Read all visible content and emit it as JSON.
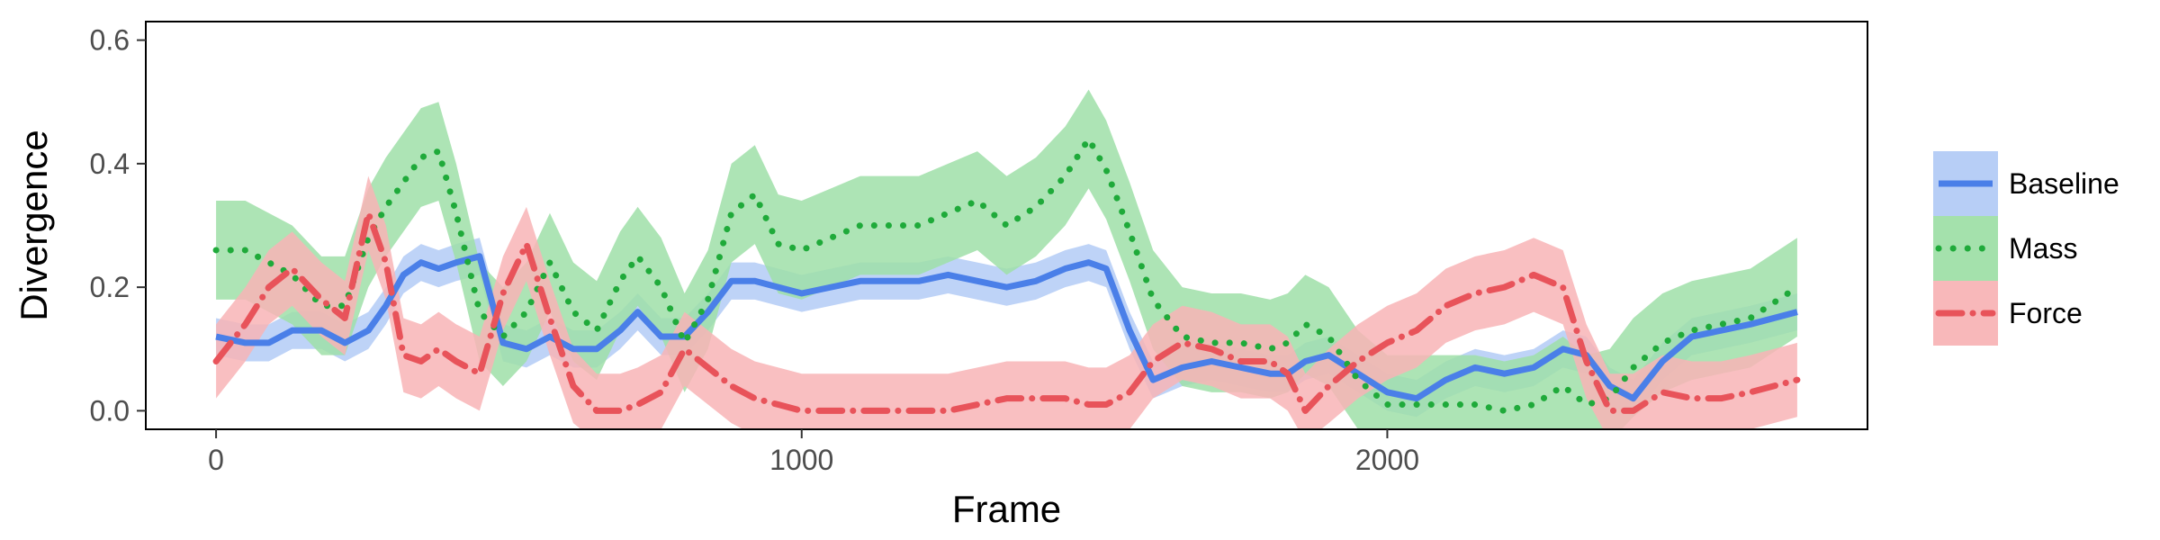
{
  "chart_data": {
    "type": "line",
    "xlabel": "Frame",
    "ylabel": "Divergence",
    "xlim": [
      -120,
      2820
    ],
    "ylim": [
      -0.03,
      0.63
    ],
    "xticks": [
      0,
      1000,
      2000
    ],
    "xtick_labels": [
      "0",
      "1000",
      "2000"
    ],
    "yticks": [
      0.0,
      0.2,
      0.4,
      0.6
    ],
    "ytick_labels": [
      "0.0",
      "0.2",
      "0.4",
      "0.6"
    ],
    "grid": false,
    "legend_position": "right",
    "x": [
      0,
      50,
      90,
      130,
      180,
      220,
      260,
      290,
      320,
      350,
      380,
      410,
      450,
      490,
      530,
      570,
      610,
      650,
      690,
      720,
      760,
      800,
      840,
      880,
      920,
      960,
      1000,
      1050,
      1100,
      1150,
      1200,
      1250,
      1300,
      1350,
      1400,
      1450,
      1490,
      1520,
      1560,
      1600,
      1650,
      1700,
      1750,
      1800,
      1830,
      1860,
      1900,
      1950,
      2000,
      2050,
      2100,
      2150,
      2200,
      2250,
      2300,
      2340,
      2380,
      2420,
      2470,
      2520,
      2570,
      2620,
      2700
    ],
    "series": [
      {
        "name": "Baseline",
        "color": "#4a7fe8",
        "band_color": "#b3cbf6",
        "style": "solid",
        "values": [
          0.12,
          0.11,
          0.11,
          0.13,
          0.13,
          0.11,
          0.13,
          0.17,
          0.22,
          0.24,
          0.23,
          0.24,
          0.25,
          0.11,
          0.1,
          0.12,
          0.1,
          0.1,
          0.13,
          0.16,
          0.12,
          0.12,
          0.16,
          0.21,
          0.21,
          0.2,
          0.19,
          0.2,
          0.21,
          0.21,
          0.21,
          0.22,
          0.21,
          0.2,
          0.21,
          0.23,
          0.24,
          0.23,
          0.13,
          0.05,
          0.07,
          0.08,
          0.07,
          0.06,
          0.06,
          0.08,
          0.09,
          0.06,
          0.03,
          0.02,
          0.05,
          0.07,
          0.06,
          0.07,
          0.1,
          0.09,
          0.04,
          0.02,
          0.08,
          0.12,
          0.13,
          0.14,
          0.16
        ]
      },
      {
        "name": "Mass",
        "color": "#1faa3a",
        "band_color": "#9fdfa8",
        "style": "dotted",
        "values": [
          0.26,
          0.26,
          0.24,
          0.22,
          0.17,
          0.17,
          0.28,
          0.33,
          0.37,
          0.41,
          0.42,
          0.32,
          0.16,
          0.12,
          0.16,
          0.24,
          0.16,
          0.13,
          0.21,
          0.25,
          0.2,
          0.11,
          0.18,
          0.32,
          0.35,
          0.27,
          0.26,
          0.28,
          0.3,
          0.3,
          0.3,
          0.32,
          0.34,
          0.3,
          0.33,
          0.38,
          0.44,
          0.39,
          0.29,
          0.18,
          0.12,
          0.11,
          0.11,
          0.1,
          0.11,
          0.14,
          0.12,
          0.05,
          0.01,
          0.01,
          0.01,
          0.01,
          0.0,
          0.01,
          0.04,
          0.01,
          0.02,
          0.07,
          0.11,
          0.13,
          0.14,
          0.15,
          0.2
        ]
      },
      {
        "name": "Force",
        "color": "#e8535a",
        "band_color": "#f8b4b6",
        "style": "dashdot",
        "values": [
          0.08,
          0.14,
          0.2,
          0.23,
          0.18,
          0.15,
          0.32,
          0.24,
          0.09,
          0.08,
          0.1,
          0.08,
          0.06,
          0.19,
          0.27,
          0.15,
          0.04,
          0.0,
          0.0,
          0.01,
          0.03,
          0.1,
          0.07,
          0.04,
          0.02,
          0.01,
          0.0,
          0.0,
          0.0,
          0.0,
          0.0,
          0.0,
          0.01,
          0.02,
          0.02,
          0.02,
          0.01,
          0.01,
          0.03,
          0.08,
          0.11,
          0.1,
          0.08,
          0.08,
          0.06,
          0.0,
          0.04,
          0.08,
          0.11,
          0.13,
          0.17,
          0.19,
          0.2,
          0.22,
          0.2,
          0.08,
          0.0,
          0.0,
          0.03,
          0.02,
          0.02,
          0.03,
          0.05
        ]
      }
    ]
  }
}
